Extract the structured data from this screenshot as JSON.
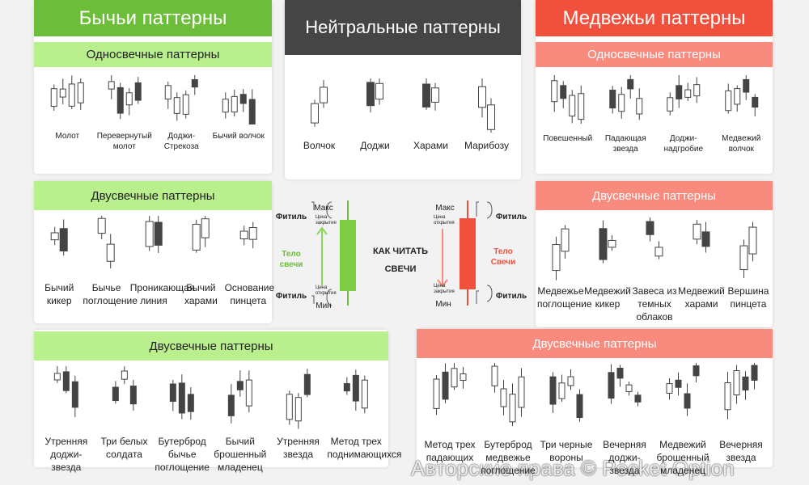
{
  "bullish": {
    "title": "Бычьи паттерны",
    "single": {
      "title": "Односвечные паттерны",
      "items": [
        "Молот",
        "Перевернутый молот",
        "Доджи-Стрекоза",
        "Бычий волчок"
      ]
    },
    "double": {
      "title": "Двусвечные паттерны",
      "items": [
        "Бычий кикер",
        "Бычье поглощение",
        "Проникающая линия",
        "Бычий харами",
        "Основание пинцета"
      ]
    },
    "triple": {
      "title": "Двусвечные паттерны",
      "items": [
        "Утренняя доджи-звезда",
        "Три белых солдата",
        "Бутерброд бычье поглощение",
        "Бычий брошенный младенец",
        "Утренняя звезда",
        "Метод трех поднимающихся"
      ]
    }
  },
  "neutral": {
    "title": "Нейтральные паттерны",
    "items": [
      "Волчок",
      "Доджи",
      "Харами",
      "Марибозу"
    ]
  },
  "bearish": {
    "title": "Медвежьи паттерны",
    "single": {
      "title": "Односвечные паттерны",
      "items": [
        "Повешенный",
        "Падающая звезда",
        "Доджи-надгробие",
        "Медвежий волчок"
      ]
    },
    "double": {
      "title": "Двусвечные паттерны",
      "items": [
        "Медвежье поглощение",
        "Медвежий кикер",
        "Завеса из темных облаков",
        "Медвежий харами",
        "Вершина пинцета"
      ]
    },
    "triple": {
      "title": "Двусвечные паттерны",
      "items": [
        "Метод трех падающих",
        "Бутерброд медвежье поглощение",
        "Три черные вороны",
        "Вечерняя доджи-звезда",
        "Медвежий брошенный младенец",
        "Вечерняя звезда"
      ]
    }
  },
  "guide": {
    "title": "КАК ЧИТАТЬ СВЕЧИ",
    "bull": {
      "high": "Макс",
      "close": "Цена закрытия",
      "wick_top": "Фитиль",
      "body": "Тело свечи",
      "open": "Цена открытия",
      "wick_bottom": "Фитиль",
      "low": "Мин"
    },
    "bear": {
      "high": "Макс",
      "open": "Цена открытия",
      "wick_top": "Фитиль",
      "body": "Тело Свечи",
      "close": "Цена закрытия",
      "wick_bottom": "Фитиль",
      "low": "Мин"
    }
  },
  "watermark": "Авторские права © Pocket Option"
}
